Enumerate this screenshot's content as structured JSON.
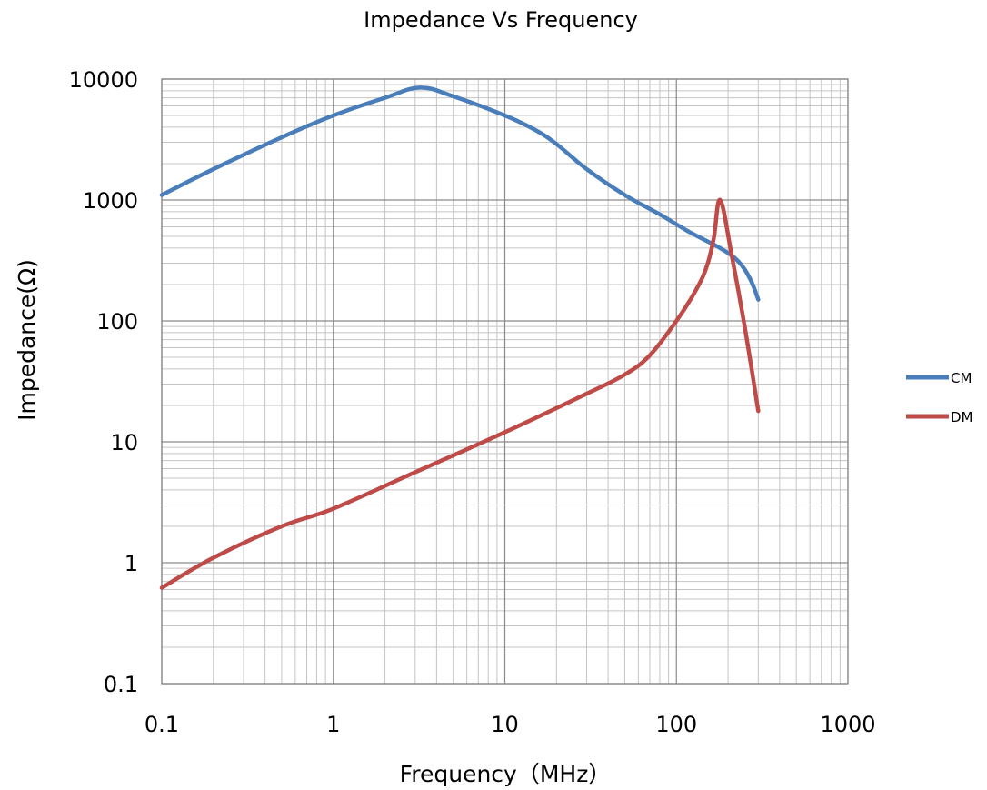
{
  "chart_data": {
    "type": "line",
    "title": "Impedance Vs Frequency",
    "xlabel": "Frequency（MHz）",
    "ylabel": "Impedance(Ω)",
    "x_scale": "log",
    "y_scale": "log",
    "xlim": [
      0.1,
      1000
    ],
    "ylim": [
      0.1,
      10000
    ],
    "x_ticks": [
      "0.1",
      "1",
      "10",
      "100",
      "1000"
    ],
    "y_ticks": [
      "0.1",
      "1",
      "10",
      "100",
      "1000",
      "10000"
    ],
    "grid": "major and minor (log)",
    "legend_position": "right",
    "series": [
      {
        "name": "CM",
        "color": "#4A7EBB",
        "points": [
          [
            0.1,
            1100
          ],
          [
            0.2,
            1800
          ],
          [
            0.5,
            3300
          ],
          [
            1,
            5000
          ],
          [
            2,
            7000
          ],
          [
            3.2,
            8500
          ],
          [
            5,
            7200
          ],
          [
            10,
            5000
          ],
          [
            15,
            3800
          ],
          [
            20,
            2900
          ],
          [
            30,
            1800
          ],
          [
            50,
            1100
          ],
          [
            80,
            760
          ],
          [
            120,
            540
          ],
          [
            180,
            400
          ],
          [
            230,
            310
          ],
          [
            270,
            220
          ],
          [
            300,
            150
          ]
        ]
      },
      {
        "name": "DM",
        "color": "#BE4B48",
        "points": [
          [
            0.1,
            0.62
          ],
          [
            0.2,
            1.1
          ],
          [
            0.5,
            2.0
          ],
          [
            1,
            2.8
          ],
          [
            3,
            5.6
          ],
          [
            10,
            12
          ],
          [
            30,
            25
          ],
          [
            50,
            36
          ],
          [
            70,
            52
          ],
          [
            100,
            100
          ],
          [
            130,
            180
          ],
          [
            150,
            280
          ],
          [
            165,
            480
          ],
          [
            180,
            1000
          ],
          [
            210,
            350
          ],
          [
            250,
            90
          ],
          [
            300,
            18
          ]
        ]
      }
    ]
  }
}
